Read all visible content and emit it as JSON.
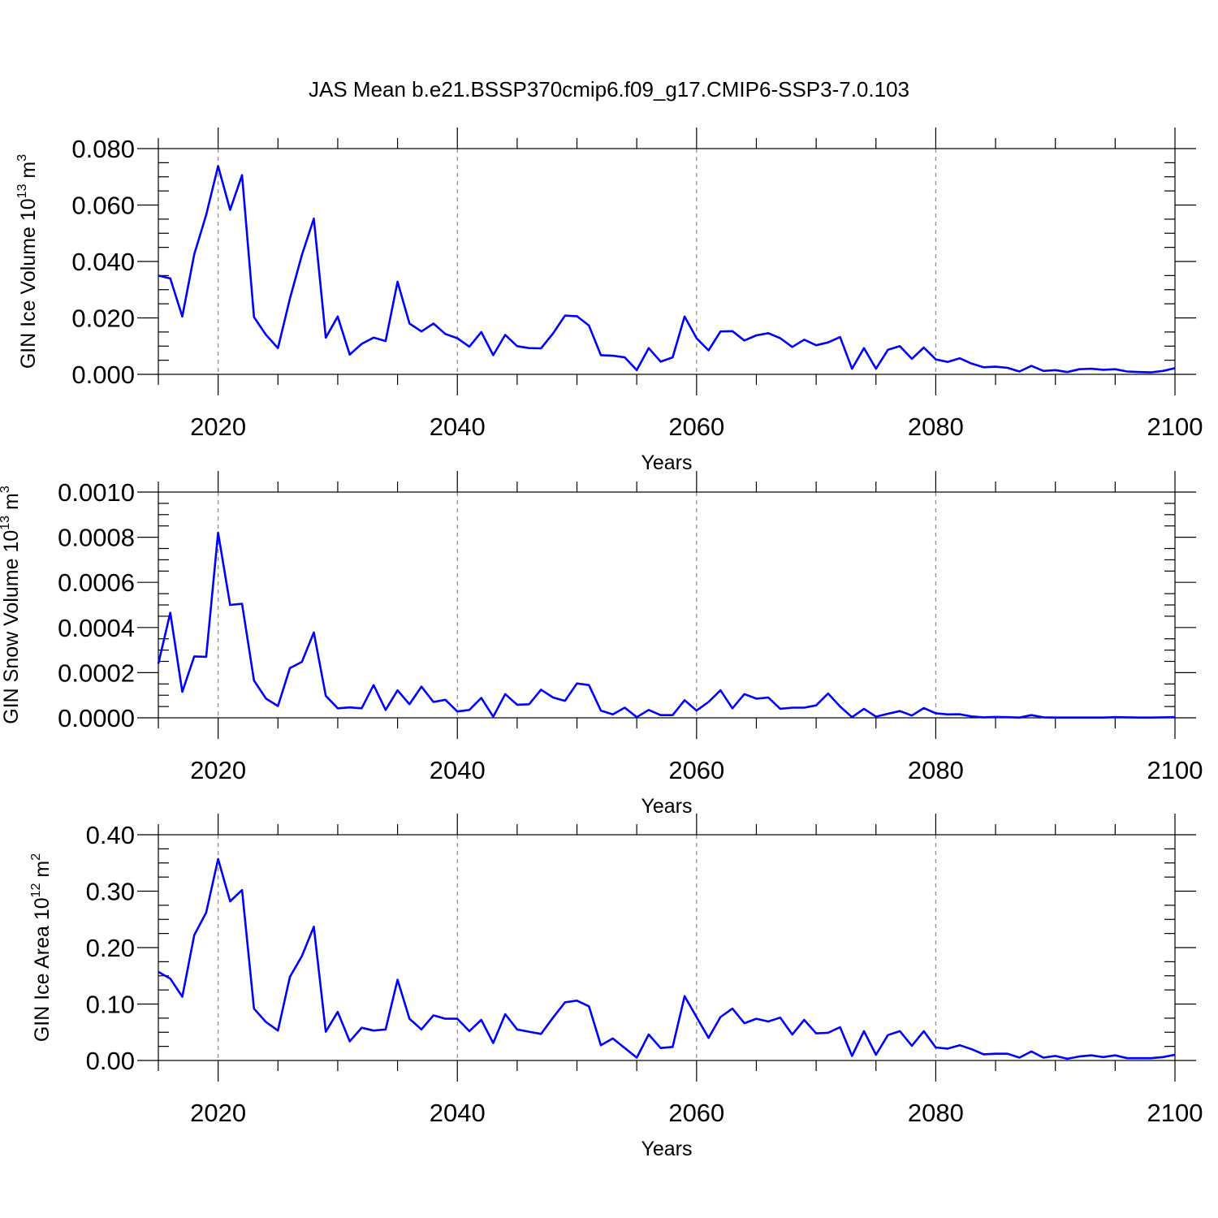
{
  "title": "JAS Mean b.e21.BSSP370cmip6.f09_g17.CMIP6-SSP3-7.0.103",
  "colors": {
    "line": "#0000ff",
    "grid": "#888888"
  },
  "chart_data": [
    {
      "type": "line",
      "ylabel": {
        "main": "GIN Ice Volume 10",
        "exp": "13",
        "unit": " m",
        "unit_exp": "3"
      },
      "xlabel": "Years",
      "xlim": [
        2015,
        2100
      ],
      "ylim": [
        0,
        0.08
      ],
      "x_ticks": [
        2020,
        2040,
        2060,
        2080,
        2100
      ],
      "x_tick_labels": [
        "2020",
        "2040",
        "2060",
        "2080",
        "2100"
      ],
      "y_ticks": [
        0,
        0.02,
        0.04,
        0.06,
        0.08
      ],
      "y_tick_labels": [
        "0.000",
        "0.020",
        "0.040",
        "0.060",
        "0.080"
      ],
      "grid": "vertical dashed at major x ticks",
      "series": [
        {
          "x_start": 2015,
          "values": [
            0.035,
            0.034,
            0.0205,
            0.0425,
            0.0565,
            0.0738,
            0.0583,
            0.0706,
            0.0203,
            0.014,
            0.0093,
            0.0268,
            0.0423,
            0.0552,
            0.013,
            0.0205,
            0.007,
            0.0108,
            0.013,
            0.0118,
            0.0328,
            0.018,
            0.0152,
            0.018,
            0.0143,
            0.0128,
            0.0098,
            0.015,
            0.0068,
            0.014,
            0.01,
            0.0093,
            0.0092,
            0.0145,
            0.0208,
            0.0206,
            0.0173,
            0.0068,
            0.0066,
            0.006,
            0.0015,
            0.0093,
            0.0045,
            0.006,
            0.0205,
            0.0128,
            0.0085,
            0.0152,
            0.0153,
            0.012,
            0.0138,
            0.0146,
            0.0128,
            0.0097,
            0.0123,
            0.0103,
            0.0113,
            0.0132,
            0.002,
            0.0093,
            0.002,
            0.0087,
            0.01,
            0.0055,
            0.0095,
            0.0053,
            0.0044,
            0.0057,
            0.0038,
            0.0025,
            0.0027,
            0.0023,
            0.001,
            0.003,
            0.0012,
            0.0015,
            0.0008,
            0.0018,
            0.002,
            0.0016,
            0.0018,
            0.001,
            0.0008,
            0.0007,
            0.0012,
            0.0022
          ]
        }
      ]
    },
    {
      "type": "line",
      "ylabel": {
        "main": "GIN Snow Volume 10",
        "exp": "13",
        "unit": " m",
        "unit_exp": "3"
      },
      "xlabel": "Years",
      "xlim": [
        2015,
        2100
      ],
      "ylim": [
        0,
        0.001
      ],
      "x_ticks": [
        2020,
        2040,
        2060,
        2080,
        2100
      ],
      "x_tick_labels": [
        "2020",
        "2040",
        "2060",
        "2080",
        "2100"
      ],
      "y_ticks": [
        0,
        0.0002,
        0.0004,
        0.0006,
        0.0008,
        0.001
      ],
      "y_tick_labels": [
        "0.0000",
        "0.0002",
        "0.0004",
        "0.0006",
        "0.0008",
        "0.0010"
      ],
      "grid": "vertical dashed at major x ticks",
      "series": [
        {
          "x_start": 2015,
          "values": [
            0.00024,
            0.000465,
            0.000115,
            0.000272,
            0.00027,
            0.00082,
            0.0005,
            0.000505,
            0.000165,
            8.5e-05,
            5.2e-05,
            0.00022,
            0.000248,
            0.000378,
            9.8e-05,
            4.2e-05,
            4.6e-05,
            4.2e-05,
            0.000145,
            3.5e-05,
            0.000122,
            6e-05,
            0.000138,
            7e-05,
            8e-05,
            2.8e-05,
            3.5e-05,
            8.8e-05,
            5e-06,
            0.000105,
            5.8e-05,
            6e-05,
            0.000125,
            9e-05,
            7.5e-05,
            0.000152,
            0.000145,
            3.2e-05,
            1.5e-05,
            4.5e-05,
            3e-06,
            3.5e-05,
            1.2e-05,
            1.2e-05,
            7.8e-05,
            3.2e-05,
            7e-05,
            0.000122,
            4.2e-05,
            0.000105,
            8.5e-05,
            9e-05,
            4e-05,
            4.5e-05,
            4.5e-05,
            5.5e-05,
            0.000108,
            5e-05,
            3e-06,
            4e-05,
            5e-06,
            1.8e-05,
            3e-05,
            1e-05,
            4.3e-05,
            2e-05,
            1.5e-05,
            1.6e-05,
            6e-06,
            2e-06,
            4e-06,
            3e-06,
            1e-06,
            1.2e-05,
            2e-06,
            1e-06,
            1e-06,
            1e-06,
            1e-06,
            1e-06,
            3e-06,
            2e-06,
            1e-06,
            1e-06,
            2e-06,
            3e-06
          ]
        }
      ]
    },
    {
      "type": "line",
      "ylabel": {
        "main": "GIN Ice Area 10",
        "exp": "12",
        "unit": " m",
        "unit_exp": "2"
      },
      "xlabel": "Years",
      "xlim": [
        2015,
        2100
      ],
      "ylim": [
        0,
        0.4
      ],
      "x_ticks": [
        2020,
        2040,
        2060,
        2080,
        2100
      ],
      "x_tick_labels": [
        "2020",
        "2040",
        "2060",
        "2080",
        "2100"
      ],
      "y_ticks": [
        0,
        0.1,
        0.2,
        0.3,
        0.4
      ],
      "y_tick_labels": [
        "0.00",
        "0.10",
        "0.20",
        "0.30",
        "0.40"
      ],
      "grid": "vertical dashed at major x ticks",
      "series": [
        {
          "x_start": 2015,
          "values": [
            0.157,
            0.145,
            0.113,
            0.222,
            0.262,
            0.357,
            0.282,
            0.302,
            0.092,
            0.068,
            0.053,
            0.148,
            0.185,
            0.237,
            0.051,
            0.086,
            0.034,
            0.058,
            0.053,
            0.055,
            0.143,
            0.074,
            0.055,
            0.08,
            0.074,
            0.074,
            0.052,
            0.072,
            0.031,
            0.082,
            0.055,
            0.051,
            0.047,
            0.076,
            0.103,
            0.106,
            0.096,
            0.027,
            0.039,
            0.022,
            0.005,
            0.046,
            0.022,
            0.024,
            0.114,
            0.077,
            0.04,
            0.077,
            0.092,
            0.066,
            0.074,
            0.069,
            0.076,
            0.046,
            0.072,
            0.048,
            0.049,
            0.059,
            0.008,
            0.052,
            0.01,
            0.045,
            0.052,
            0.026,
            0.052,
            0.023,
            0.021,
            0.027,
            0.02,
            0.011,
            0.012,
            0.012,
            0.005,
            0.016,
            0.005,
            0.008,
            0.003,
            0.007,
            0.009,
            0.006,
            0.009,
            0.004,
            0.004,
            0.004,
            0.006,
            0.01
          ]
        }
      ]
    }
  ]
}
